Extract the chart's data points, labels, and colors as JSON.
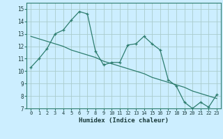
{
  "xlabel": "Humidex (Indice chaleur)",
  "bg_color": "#cceeff",
  "line_color": "#2d7d6e",
  "grid_color": "#aacccc",
  "xlim": [
    -0.5,
    23.5
  ],
  "ylim": [
    7,
    15.5
  ],
  "xticks": [
    0,
    1,
    2,
    3,
    4,
    5,
    6,
    7,
    8,
    9,
    10,
    11,
    12,
    13,
    14,
    15,
    16,
    17,
    18,
    19,
    20,
    21,
    22,
    23
  ],
  "yticks": [
    7,
    8,
    9,
    10,
    11,
    12,
    13,
    14,
    15
  ],
  "series1_x": [
    0,
    1,
    2,
    3,
    4,
    5,
    6,
    7,
    8,
    9,
    10,
    11,
    12,
    13,
    14,
    15,
    16,
    17,
    18,
    19,
    20,
    21,
    22,
    23
  ],
  "series1_y": [
    10.3,
    11.0,
    11.8,
    13.0,
    13.3,
    14.1,
    14.8,
    14.6,
    11.6,
    10.5,
    10.7,
    10.7,
    12.1,
    12.2,
    12.8,
    12.2,
    11.7,
    9.3,
    8.8,
    7.5,
    7.0,
    7.5,
    7.1,
    8.1
  ],
  "series2_x": [
    0,
    1,
    2,
    3,
    4,
    5,
    6,
    7,
    8,
    9,
    10,
    11,
    12,
    13,
    14,
    15,
    16,
    17,
    18,
    19,
    20,
    21,
    22,
    23
  ],
  "series2_y": [
    12.8,
    12.6,
    12.4,
    12.2,
    12.0,
    11.7,
    11.5,
    11.3,
    11.1,
    10.8,
    10.6,
    10.4,
    10.2,
    10.0,
    9.8,
    9.5,
    9.3,
    9.1,
    8.9,
    8.7,
    8.4,
    8.2,
    8.0,
    7.8
  ]
}
